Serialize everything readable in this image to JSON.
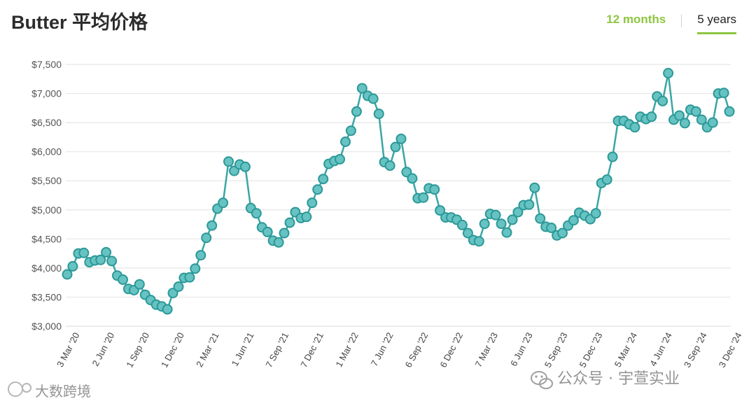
{
  "header": {
    "title": "Butter 平均价格",
    "tabs": [
      {
        "label": "12 months",
        "active": false
      },
      {
        "label": "5 years",
        "active": true
      }
    ]
  },
  "colors": {
    "line": "#3aa5a5",
    "marker_edge": "#2c9898",
    "marker_fill": "#66c3c2",
    "accent": "#8dc63f",
    "grid": "#e6e6e6"
  },
  "watermarks": [
    "公众号 · 宇萱实业",
    "大数跨境"
  ],
  "chart_data": {
    "type": "line",
    "series": [
      {
        "name": "",
        "values": [
          3890,
          4030,
          4250,
          4260,
          4100,
          4130,
          4140,
          4270,
          4120,
          3870,
          3800,
          3640,
          3620,
          3720,
          3540,
          3450,
          3370,
          3340,
          3290,
          3570,
          3680,
          3830,
          3840,
          3990,
          4220,
          4520,
          4730,
          5020,
          5120,
          5830,
          5670,
          5780,
          5740,
          5030,
          4940,
          4700,
          4620,
          4470,
          4440,
          4600,
          4780,
          4960,
          4860,
          4880,
          5120,
          5350,
          5530,
          5790,
          5840,
          5870,
          6170,
          6360,
          6690,
          7090,
          6960,
          6910,
          6650,
          5820,
          5760,
          6080,
          6220,
          5650,
          5540,
          5200,
          5210,
          5370,
          5350,
          4990,
          4870,
          4870,
          4830,
          4740,
          4600,
          4480,
          4460,
          4760,
          4930,
          4910,
          4760,
          4610,
          4830,
          4960,
          5080,
          5090,
          5380,
          4850,
          4710,
          4690,
          4560,
          4600,
          4730,
          4820,
          4950,
          4900,
          4840,
          4940,
          5460,
          5520,
          5910,
          6530,
          6530,
          6470,
          6420,
          6600,
          6560,
          6600,
          6950,
          6870,
          7350,
          6550,
          6620,
          6490,
          6720,
          6690,
          6550,
          6420,
          6500,
          7000,
          7010,
          6690
        ]
      }
    ],
    "x_ticks": [
      "3 Mar '20",
      "2 Jun '20",
      "1 Sep '20",
      "1 Dec '20",
      "2 Mar '21",
      "1 Jun '21",
      "7 Sep '21",
      "7 Dec '21",
      "1 Mar '22",
      "7 Jun '22",
      "6 Sep '22",
      "6 Dec '22",
      "7 Mar '23",
      "6 Jun '23",
      "5 Sep '23",
      "5 Dec '23",
      "5 Mar '24",
      "4 Jun '24",
      "3 Sep '24",
      "3 Dec '24"
    ],
    "y_ticks": [
      "$3,000",
      "$3,500",
      "$4,000",
      "$4,500",
      "$5,000",
      "$5,500",
      "$6,000",
      "$6,500",
      "$7,000",
      "$7,500"
    ],
    "ylim": [
      3000,
      7500
    ],
    "grid": true,
    "xlabel": "",
    "ylabel": ""
  }
}
